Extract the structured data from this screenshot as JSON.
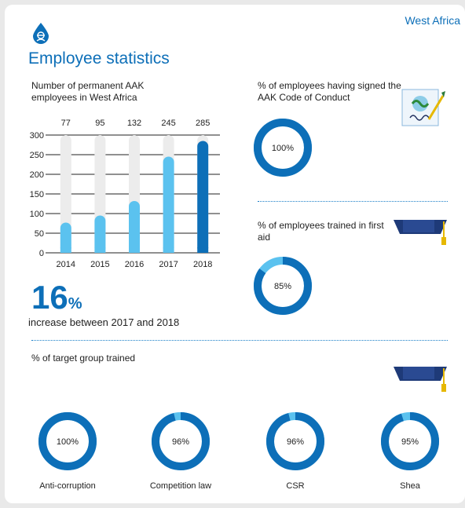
{
  "region": "West Africa",
  "title": "Employee statistics",
  "icons": {
    "logo": "drop-worker-icon",
    "handshake": "handshake-document-icon",
    "graduation": "graduation-cap-icon"
  },
  "colors": {
    "brand": "#0d6fb8",
    "bar_light": "#5bc2ef",
    "bar_dark": "#0d6fb8",
    "track": "#ececec",
    "donut_remainder": "#5bc2ef"
  },
  "chart_data": [
    {
      "type": "bar",
      "title": "Number of permanent AAK employees in West Africa",
      "categories": [
        "2014",
        "2015",
        "2016",
        "2017",
        "2018"
      ],
      "values": [
        77,
        95,
        132,
        245,
        285
      ],
      "data_labels": [
        "77",
        "95",
        "132",
        "245",
        "285"
      ],
      "ylim": [
        0,
        300
      ],
      "yticks": [
        0,
        50,
        100,
        150,
        200,
        250,
        300
      ],
      "grid": true,
      "highlight_last": true
    },
    {
      "type": "pie",
      "title": "% of employees having signed the AAK Code of Conduct",
      "value": 100,
      "label": "100%"
    },
    {
      "type": "pie",
      "title": "% of employees trained in first aid",
      "value": 85,
      "label": "85%"
    },
    {
      "type": "pie",
      "title": "% of target group trained",
      "items": [
        {
          "name": "Anti-corruption",
          "value": 100,
          "label": "100%"
        },
        {
          "name": "Competition law",
          "value": 96,
          "label": "96%"
        },
        {
          "name": "CSR",
          "value": 96,
          "label": "96%"
        },
        {
          "name": "Shea",
          "value": 95,
          "label": "95%"
        }
      ]
    }
  ],
  "highlight": {
    "number": "16",
    "unit": "%",
    "text": "increase between 2017 and 2018"
  }
}
